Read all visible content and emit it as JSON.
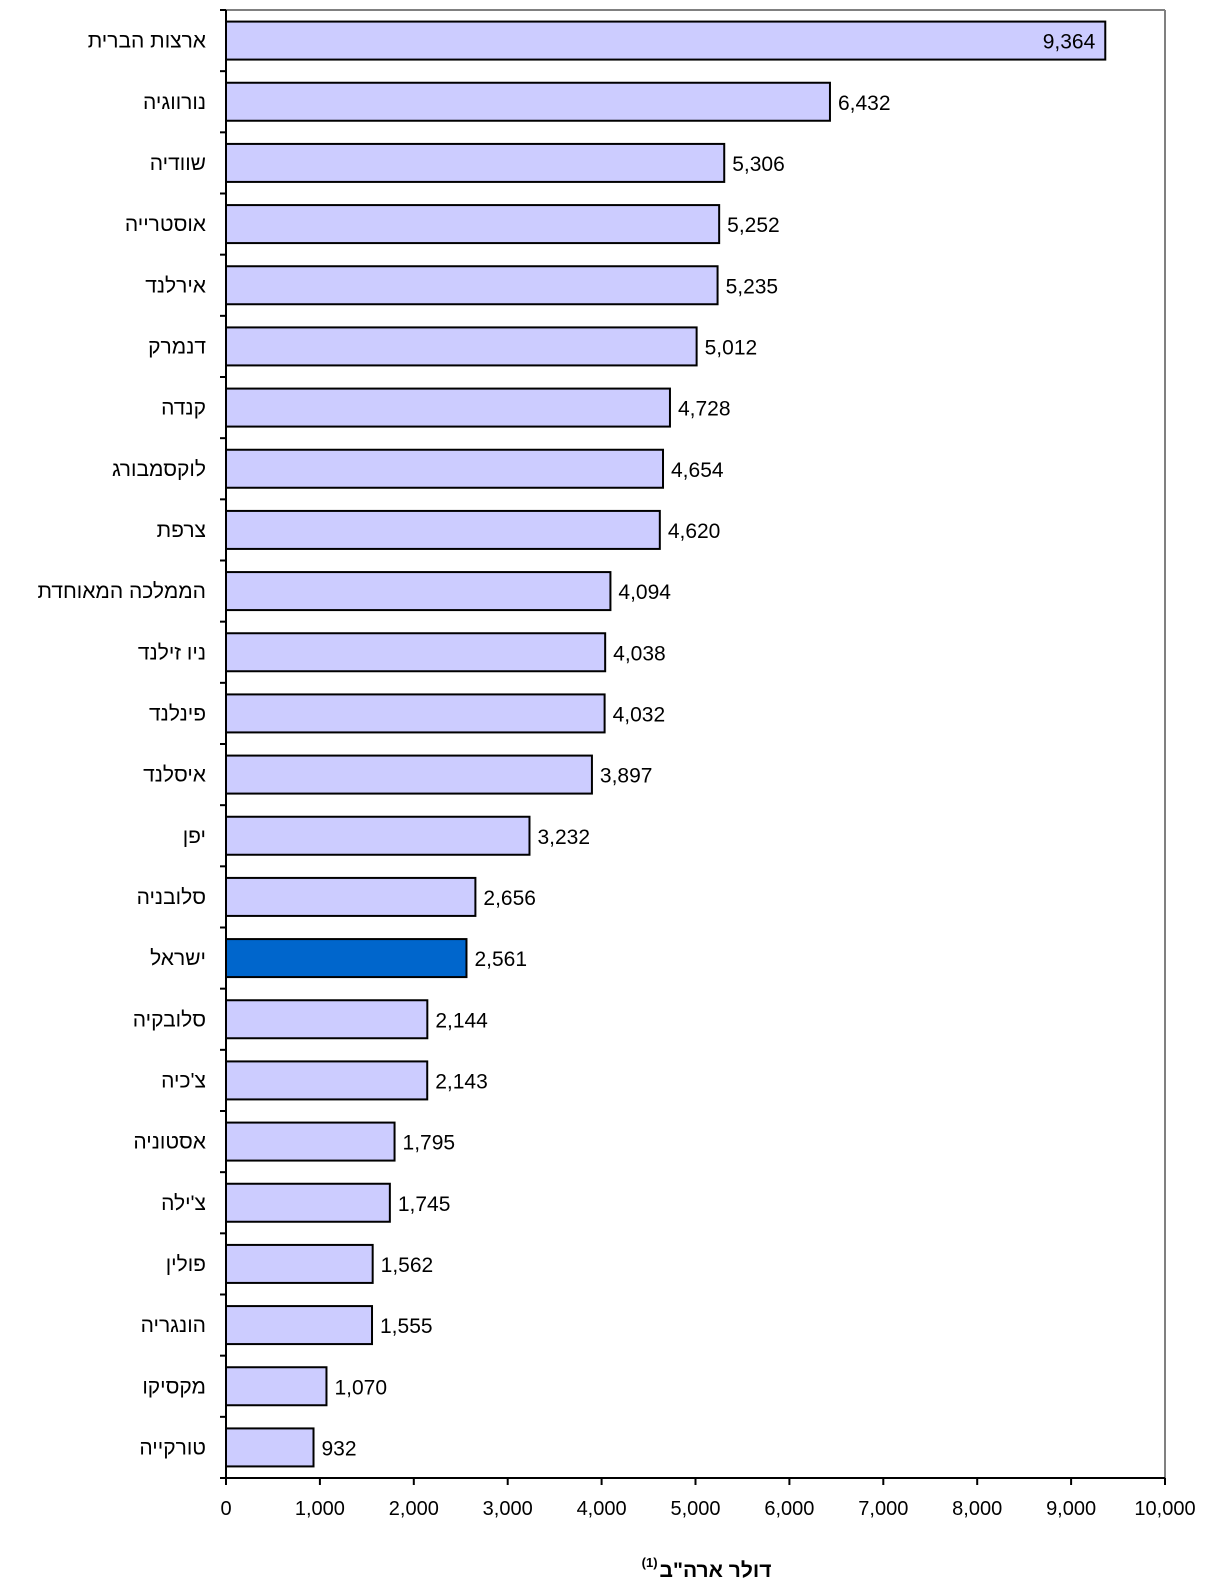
{
  "chart_data": {
    "type": "bar",
    "orientation": "horizontal",
    "categories": [
      "ארצות הברית",
      "נורווגיה",
      "שוודיה",
      "אוסטרייה",
      "אירלנד",
      "דנמרק",
      "קנדה",
      "לוקסמבורג",
      "צרפת",
      "הממלכה המאוחדת",
      "ניו זילנד",
      "פינלנד",
      "איסלנד",
      "יפן",
      "סלובניה",
      "ישראל",
      "סלובקיה",
      "צ'כיה",
      "אסטוניה",
      "צ'ילה",
      "פולין",
      "הונגריה",
      "מקסיקו",
      "טורקייה"
    ],
    "values": [
      9364,
      6432,
      5306,
      5252,
      5235,
      5012,
      4728,
      4654,
      4620,
      4094,
      4038,
      4032,
      3897,
      3232,
      2656,
      2561,
      2144,
      2143,
      1795,
      1745,
      1562,
      1555,
      1070,
      932
    ],
    "value_labels": [
      "9,364",
      "6,432",
      "5,306",
      "5,252",
      "5,235",
      "5,012",
      "4,728",
      "4,654",
      "4,620",
      "4,094",
      "4,038",
      "4,032",
      "3,897",
      "3,232",
      "2,656",
      "2,561",
      "2,144",
      "2,143",
      "1,795",
      "1,745",
      "1,562",
      "1,555",
      "1,070",
      "932"
    ],
    "highlight_category": "ישראל",
    "xlim": [
      0,
      10000
    ],
    "xticks": [
      0,
      1000,
      2000,
      3000,
      4000,
      5000,
      6000,
      7000,
      8000,
      9000,
      10000
    ],
    "xtick_labels": [
      "0",
      "1,000",
      "2,000",
      "3,000",
      "4,000",
      "5,000",
      "6,000",
      "7,000",
      "8,000",
      "9,000",
      "10,000"
    ],
    "xlabel": "דולר ארה\"ב",
    "xlabel_superscript": "(1)",
    "title": "",
    "ylabel": "",
    "colors": {
      "bar": "#ccccff",
      "highlight": "#0066cc",
      "bar_stroke": "#000000",
      "axis": "#000000",
      "frame": "#808080"
    },
    "grid": false
  }
}
